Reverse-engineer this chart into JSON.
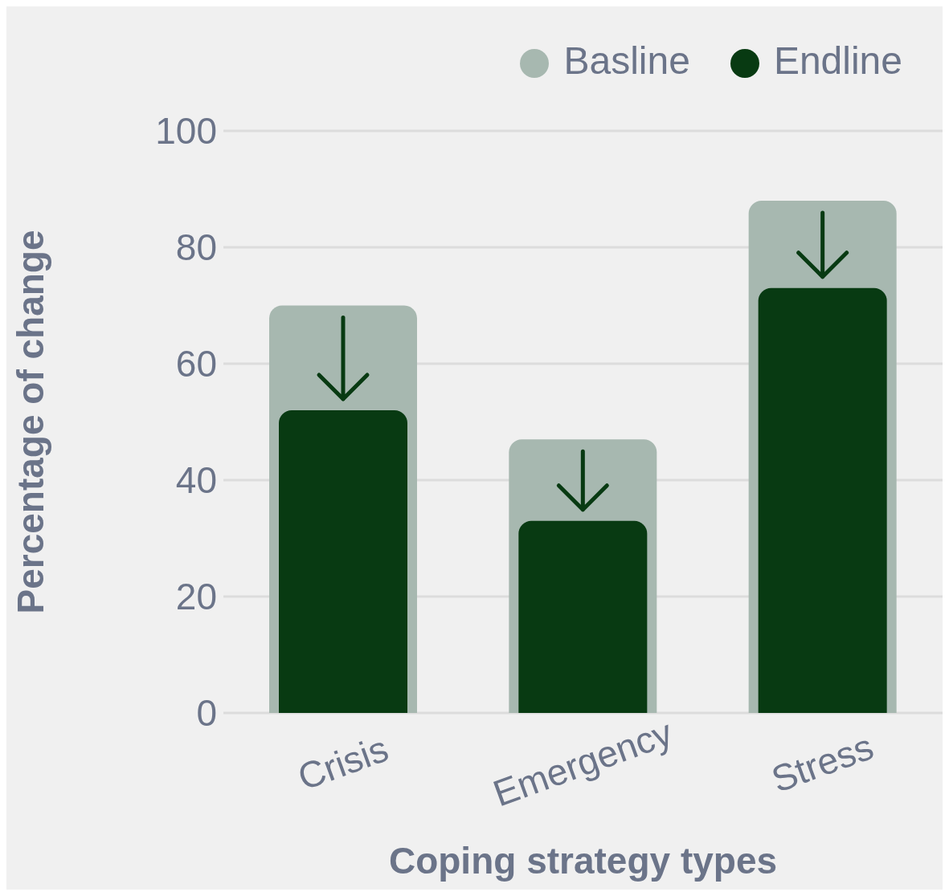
{
  "chart_data": {
    "type": "bar",
    "xlabel": "Coping strategy types",
    "ylabel": "Percentage of change",
    "categories": [
      "Crisis",
      "Emergency",
      "Stress"
    ],
    "series": [
      {
        "name": "Basline",
        "color": "#a7b8b0",
        "values": [
          70,
          47,
          88
        ]
      },
      {
        "name": "Endline",
        "color": "#083a12",
        "values": [
          52,
          33,
          73
        ]
      }
    ],
    "ylim": [
      0,
      100
    ],
    "yticks": [
      0,
      20,
      40,
      60,
      80,
      100
    ],
    "grid": "y",
    "legend": "top right"
  }
}
